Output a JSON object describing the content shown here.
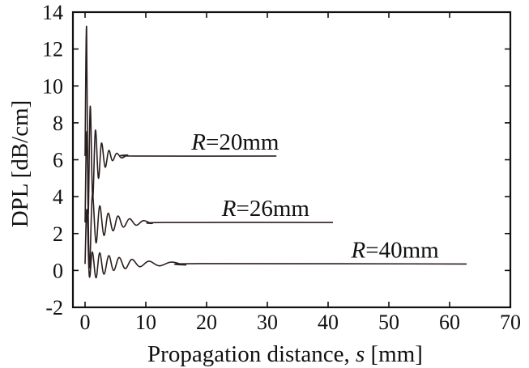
{
  "chart_data": {
    "type": "line",
    "title": "",
    "xlabel": "Propagation distance,",
    "xlabel_var": "s",
    "xlabel_unit": "[mm]",
    "ylabel": "DPL [dB/cm]",
    "xlim": [
      -2,
      70
    ],
    "ylim": [
      -2,
      14
    ],
    "xticks": [
      0,
      10,
      20,
      30,
      40,
      50,
      60,
      70
    ],
    "yticks": [
      -2,
      0,
      2,
      4,
      6,
      8,
      10,
      12,
      14
    ],
    "grid": false,
    "legend": "none",
    "line_color": "#2a1e1e",
    "series": [
      {
        "label_var": "R",
        "label_text": "=20mm",
        "label_at": [
          17.5,
          6.2
        ],
        "x_end": 31.5,
        "settled_value": 6.2,
        "description": "damped oscillation",
        "x": [
          0,
          0.25,
          0.5,
          0.85,
          1.25,
          1.7,
          2.2,
          2.7,
          3.3,
          3.9,
          4.5,
          5.2,
          6.0,
          7.0,
          8.0,
          31.5
        ],
        "values": [
          6.2,
          13.2,
          3.1,
          8.9,
          3.9,
          7.6,
          5.0,
          6.9,
          5.6,
          6.5,
          5.95,
          6.35,
          6.1,
          6.25,
          6.2,
          6.2
        ]
      },
      {
        "label_var": "R",
        "label_text": "=26mm",
        "label_at": [
          22.5,
          2.6
        ],
        "x_end": 40.8,
        "settled_value": 2.6,
        "description": "damped oscillation",
        "x": [
          0,
          0.3,
          0.7,
          1.2,
          1.8,
          2.4,
          3.1,
          3.8,
          4.6,
          5.4,
          6.3,
          7.3,
          8.4,
          9.6,
          11.0,
          13.0,
          40.8
        ],
        "values": [
          2.6,
          7.5,
          0.2,
          4.1,
          1.5,
          3.5,
          1.9,
          3.1,
          2.15,
          2.95,
          2.35,
          2.8,
          2.45,
          2.7,
          2.55,
          2.6,
          2.6
        ]
      },
      {
        "label_var": "R",
        "label_text": "=40mm",
        "label_at": [
          43.8,
          0.35
        ],
        "x_end": 62.8,
        "settled_value": 0.35,
        "description": "damped oscillation",
        "x": [
          0,
          0.3,
          0.7,
          1.2,
          1.8,
          2.4,
          3.1,
          3.9,
          4.7,
          5.6,
          6.6,
          7.7,
          9.0,
          10.5,
          12.2,
          14.2,
          16.5,
          19.0,
          62.8
        ],
        "values": [
          0.35,
          3.3,
          -0.3,
          1.0,
          -0.4,
          0.95,
          -0.2,
          0.8,
          0.0,
          0.7,
          0.1,
          0.6,
          0.2,
          0.5,
          0.25,
          0.45,
          0.3,
          0.37,
          0.35
        ]
      }
    ]
  }
}
